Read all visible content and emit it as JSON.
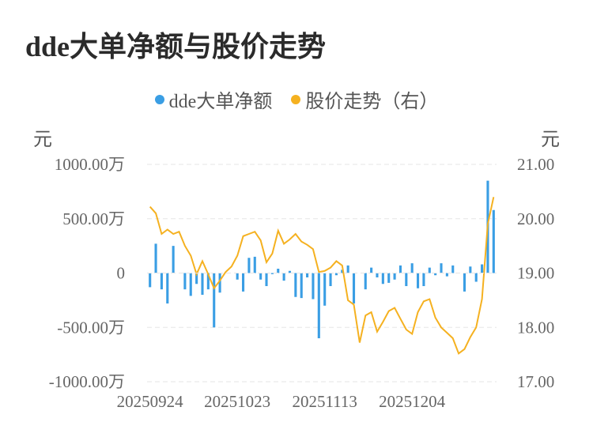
{
  "chart_data": {
    "type": "bar+line",
    "title": "dde大单净额与股价走势",
    "y_left_unit": "元",
    "y_right_unit": "元",
    "y_left_ticks": [
      "1000.00万",
      "500.00万",
      "0",
      "-500.00万",
      "-1000.00万"
    ],
    "y_left_lim": [
      -1000,
      1000
    ],
    "y_right_ticks": [
      "21.00",
      "20.00",
      "19.00",
      "18.00",
      "17.00"
    ],
    "y_right_lim": [
      17,
      21
    ],
    "x_tick_labels": [
      "20250924",
      "20251023",
      "20251113",
      "20251204"
    ],
    "x_tick_indices": [
      0,
      15,
      30,
      45
    ],
    "grid": true,
    "legend_position": "top-center",
    "series": [
      {
        "name": "dde大单净额",
        "kind": "bar",
        "axis": "left",
        "color": "#3a9ee4",
        "values": [
          -130,
          270,
          -150,
          -280,
          250,
          0,
          -150,
          -210,
          -100,
          -200,
          -150,
          -500,
          -180,
          0,
          0,
          -60,
          -170,
          140,
          150,
          -60,
          -120,
          -10,
          40,
          -70,
          20,
          -220,
          -230,
          -40,
          -240,
          -600,
          -300,
          -120,
          -20,
          30,
          70,
          -280,
          0,
          -150,
          50,
          -40,
          -100,
          -90,
          -60,
          70,
          -120,
          90,
          -140,
          -120,
          50,
          -20,
          90,
          -30,
          70,
          0,
          -170,
          60,
          -80,
          80,
          850,
          580
        ]
      },
      {
        "name": "股价走势（右）",
        "kind": "line",
        "axis": "right",
        "color": "#f5b120",
        "values": [
          20.22,
          20.1,
          19.72,
          19.8,
          19.72,
          19.76,
          19.5,
          19.32,
          18.98,
          19.22,
          18.98,
          18.72,
          18.86,
          19.02,
          19.12,
          19.32,
          19.68,
          19.72,
          19.76,
          19.6,
          19.2,
          19.36,
          19.78,
          19.54,
          19.62,
          19.72,
          19.58,
          19.52,
          19.44,
          19.02,
          19.04,
          19.1,
          19.22,
          19.14,
          18.5,
          18.42,
          17.72,
          18.22,
          18.28,
          17.92,
          18.1,
          18.3,
          18.36,
          18.16,
          17.96,
          17.88,
          18.28,
          18.48,
          18.52,
          18.18,
          18.0,
          17.9,
          17.8,
          17.52,
          17.6,
          17.82,
          18.0,
          18.52,
          19.9,
          20.4
        ]
      }
    ]
  }
}
